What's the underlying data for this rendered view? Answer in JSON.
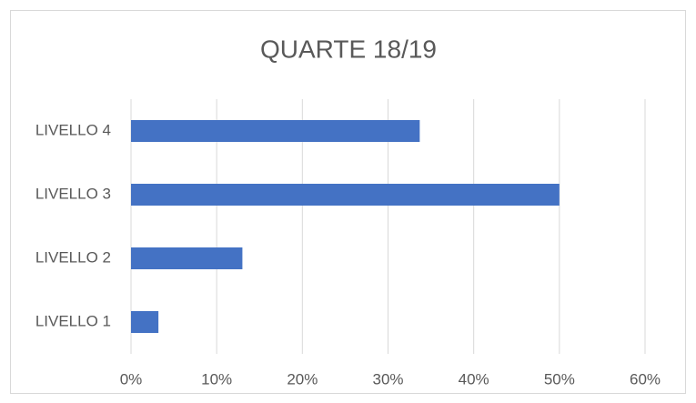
{
  "chart_data": {
    "type": "hbar",
    "title": "QUARTE 18/19",
    "categories": [
      "LIVELLO 4",
      "LIVELLO 3",
      "LIVELLO 2",
      "LIVELLO 1"
    ],
    "values": [
      33.7,
      50,
      13,
      3.2
    ],
    "color": "#4472c4",
    "xlim": [
      0,
      60
    ],
    "xticks": [
      {
        "value": 0,
        "label": "0%"
      },
      {
        "value": 10,
        "label": "10%"
      },
      {
        "value": 20,
        "label": "20%"
      },
      {
        "value": 30,
        "label": "30%"
      },
      {
        "value": 40,
        "label": "40%"
      },
      {
        "value": 50,
        "label": "50%"
      },
      {
        "value": 60,
        "label": "60%"
      }
    ],
    "grid": true
  }
}
